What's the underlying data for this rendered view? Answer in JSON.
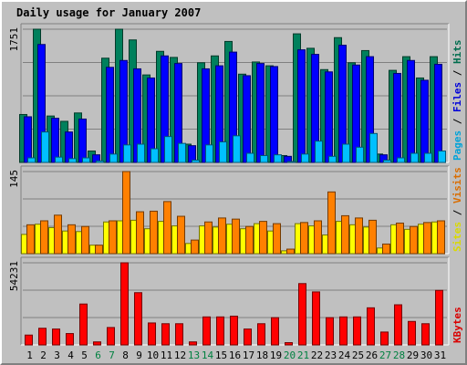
{
  "chart_data": {
    "type": "bar",
    "title": "Daily usage for January 2007",
    "categories": [
      "1",
      "2",
      "3",
      "4",
      "5",
      "6",
      "7",
      "8",
      "9",
      "10",
      "11",
      "12",
      "13",
      "14",
      "15",
      "16",
      "17",
      "18",
      "19",
      "20",
      "21",
      "22",
      "23",
      "24",
      "25",
      "26",
      "27",
      "28",
      "29",
      "30",
      "31"
    ],
    "weekend_days": [
      "6",
      "7",
      "13",
      "14",
      "20",
      "21",
      "27",
      "28"
    ],
    "panels": [
      {
        "id": "hits",
        "ymax": 1751,
        "ymax_label": "1751",
        "legend": [
          "Pages",
          "Files",
          "Hits"
        ],
        "series": [
          {
            "name": "Hits",
            "color": "#00805c",
            "values": [
              630,
              1751,
              610,
              540,
              650,
              150,
              1370,
              1751,
              1610,
              1150,
              1460,
              1380,
              240,
              1310,
              1400,
              1590,
              1160,
              1320,
              1270,
              90,
              1690,
              1500,
              1220,
              1640,
              1310,
              1470,
              110,
              1210,
              1390,
              1110,
              1390
            ]
          },
          {
            "name": "Files",
            "color": "#0000ff",
            "values": [
              600,
              1550,
              580,
              400,
              570,
              100,
              1250,
              1340,
              1230,
              1110,
              1400,
              1300,
              220,
              1230,
              1270,
              1450,
              1140,
              1300,
              1260,
              80,
              1480,
              1420,
              1190,
              1540,
              1280,
              1390,
              100,
              1170,
              1340,
              1080,
              1290
            ]
          },
          {
            "name": "Pages",
            "color": "#00c0ff",
            "values": [
              60,
              400,
              70,
              50,
              60,
              20,
              110,
              230,
              240,
              180,
              340,
              250,
              30,
              230,
              270,
              350,
              120,
              90,
              100,
              10,
              110,
              280,
              80,
              240,
              200,
              380,
              30,
              60,
              120,
              120,
              150
            ]
          }
        ]
      },
      {
        "id": "visits",
        "ymax": 145,
        "ymax_label": "145",
        "legend": [
          "Sites",
          "Visits"
        ],
        "series": [
          {
            "name": "Sites",
            "color": "#ffff00",
            "values": [
              34,
              52,
              46,
              40,
              39,
              15,
              56,
              58,
              59,
              44,
              57,
              49,
              18,
              49,
              47,
              52,
              44,
              53,
              40,
              5,
              53,
              49,
              33,
              57,
              51,
              47,
              10,
              51,
              43,
              52,
              56
            ]
          },
          {
            "name": "Visits",
            "color": "#ff8000",
            "values": [
              51,
              58,
              68,
              51,
              48,
              15,
              58,
              145,
              74,
              75,
              92,
              66,
              24,
              56,
              63,
              61,
              48,
              57,
              53,
              8,
              55,
              58,
              109,
              67,
              63,
              59,
              17,
              54,
              48,
              55,
              58
            ]
          }
        ]
      },
      {
        "id": "kbytes",
        "ymax": 54231,
        "ymax_label": "54231",
        "legend": [
          "KBytes"
        ],
        "series": [
          {
            "name": "KBytes",
            "color": "#ff0000",
            "values": [
              6500,
              11000,
              10500,
              7500,
              27000,
              2000,
              11500,
              54231,
              34500,
              14500,
              14000,
              14000,
              2000,
              18500,
              18500,
              19000,
              10500,
              14000,
              18000,
              1500,
              40500,
              35000,
              18000,
              18500,
              18500,
              24500,
              8500,
              26500,
              15500,
              14000,
              36000
            ]
          }
        ]
      }
    ],
    "grid": true
  },
  "style": {
    "background": "#c0c0c0",
    "plot_background": "#c0c0c0",
    "title_color": "#0000ff",
    "grid_color": "#808080",
    "weekday_label_color": "#000000",
    "weekend_label_color": "#008040",
    "legend_separator_color": "#000000"
  }
}
